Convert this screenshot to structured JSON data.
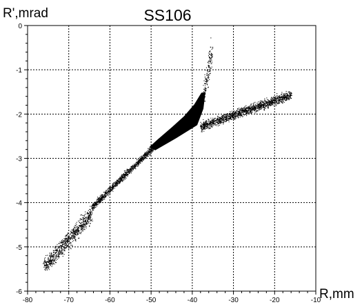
{
  "chart_data": {
    "type": "scatter",
    "title": "SS106",
    "xlabel": "R,mm",
    "ylabel": "R',mrad",
    "xlim": [
      -80,
      -10
    ],
    "ylim": [
      -6,
      0
    ],
    "xticks": [
      "-80",
      "-70",
      "-60",
      "-50",
      "-40",
      "-30",
      "-20",
      "-10"
    ],
    "yticks": [
      "0",
      "-1",
      "-2",
      "-3",
      "-4",
      "-5",
      "-6"
    ],
    "grid": true,
    "marker_color": "#000000",
    "point_regions": [
      {
        "name": "lower-tail",
        "from": [
          -76,
          -5.45
        ],
        "to": [
          -64.5,
          -4.25
        ],
        "width": 0.18
      },
      {
        "name": "mid-band",
        "from": [
          -64.5,
          -4.1
        ],
        "to": [
          -49.5,
          -2.75
        ],
        "width": 0.08
      },
      {
        "name": "upper-arm-right",
        "from": [
          -38,
          -2.28
        ],
        "to": [
          -16,
          -1.55
        ],
        "width": 0.1
      },
      {
        "name": "upper-arm-top",
        "from": [
          -37.2,
          -1.5
        ],
        "to": [
          -35.3,
          -0.6
        ],
        "width": 0.25
      }
    ],
    "dense_core": [
      [
        -50.5,
        -2.75
      ],
      [
        -48.5,
        -2.58
      ],
      [
        -45,
        -2.3
      ],
      [
        -42,
        -2.05
      ],
      [
        -39.5,
        -1.78
      ],
      [
        -37.8,
        -1.52
      ],
      [
        -36.8,
        -1.5
      ],
      [
        -37.3,
        -1.88
      ],
      [
        -38.8,
        -2.25
      ],
      [
        -44,
        -2.55
      ],
      [
        -49,
        -2.82
      ]
    ]
  }
}
